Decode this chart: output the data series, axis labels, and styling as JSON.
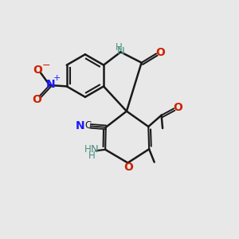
{
  "background_color": "#e8e8e8",
  "bond_color": "#1a1a1a",
  "figsize": [
    3.0,
    3.0
  ],
  "dpi": 100,
  "xlim": [
    0,
    10
  ],
  "ylim": [
    0,
    10
  ]
}
